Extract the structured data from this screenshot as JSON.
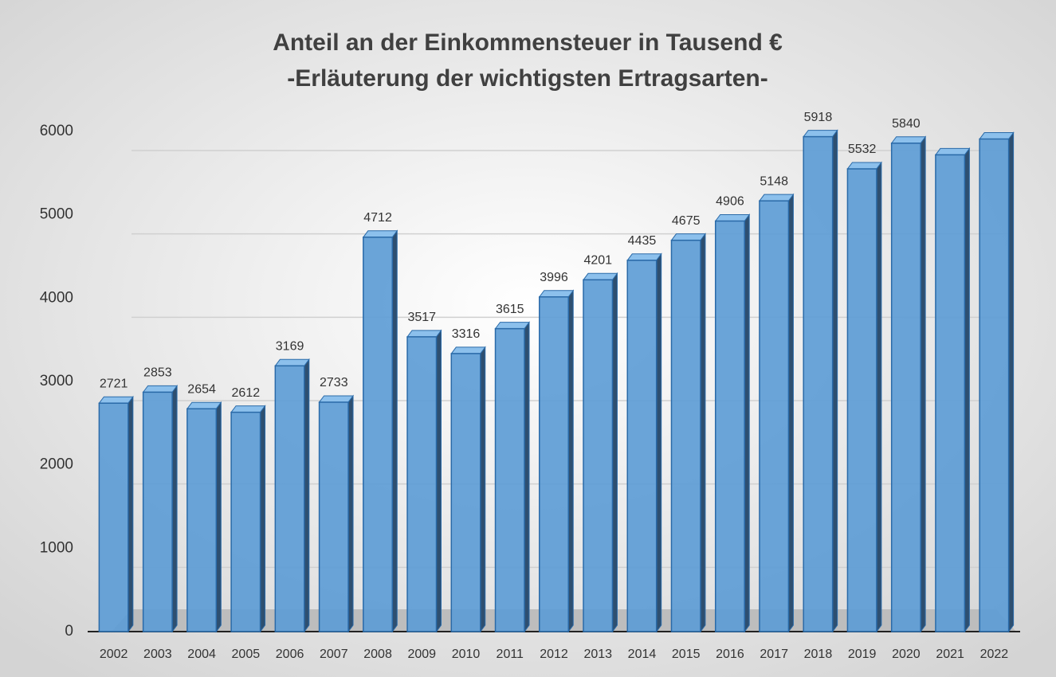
{
  "chart_data": {
    "type": "bar3d",
    "title": "Anteil an der Einkommensteuer in Tausend €",
    "subtitle": "-Erläuterung der wichtigsten Ertragsarten-",
    "categories": [
      "2002",
      "2003",
      "2004",
      "2005",
      "2006",
      "2007",
      "2008",
      "2009",
      "2010",
      "2011",
      "2012",
      "2013",
      "2014",
      "2015",
      "2016",
      "2017",
      "2018",
      "2019",
      "2020",
      "2021",
      "2022"
    ],
    "values": [
      2721,
      2853,
      2654,
      2612,
      3169,
      2733,
      4712,
      3517,
      3316,
      3615,
      3996,
      4201,
      4435,
      4675,
      4906,
      5148,
      5918,
      5532,
      5840,
      5700,
      5890
    ],
    "value_labels": [
      "2721",
      "2853",
      "2654",
      "2612",
      "3169",
      "2733",
      "4712",
      "3517",
      "3316",
      "3615",
      "3996",
      "4201",
      "4435",
      "4675",
      "4906",
      "5148",
      "5918",
      "5532",
      "5840",
      null,
      null
    ],
    "color": "#5b9bd5",
    "ylim": [
      0,
      6000
    ],
    "yticks": [
      0,
      1000,
      2000,
      3000,
      4000,
      5000,
      6000
    ],
    "grid": true
  }
}
